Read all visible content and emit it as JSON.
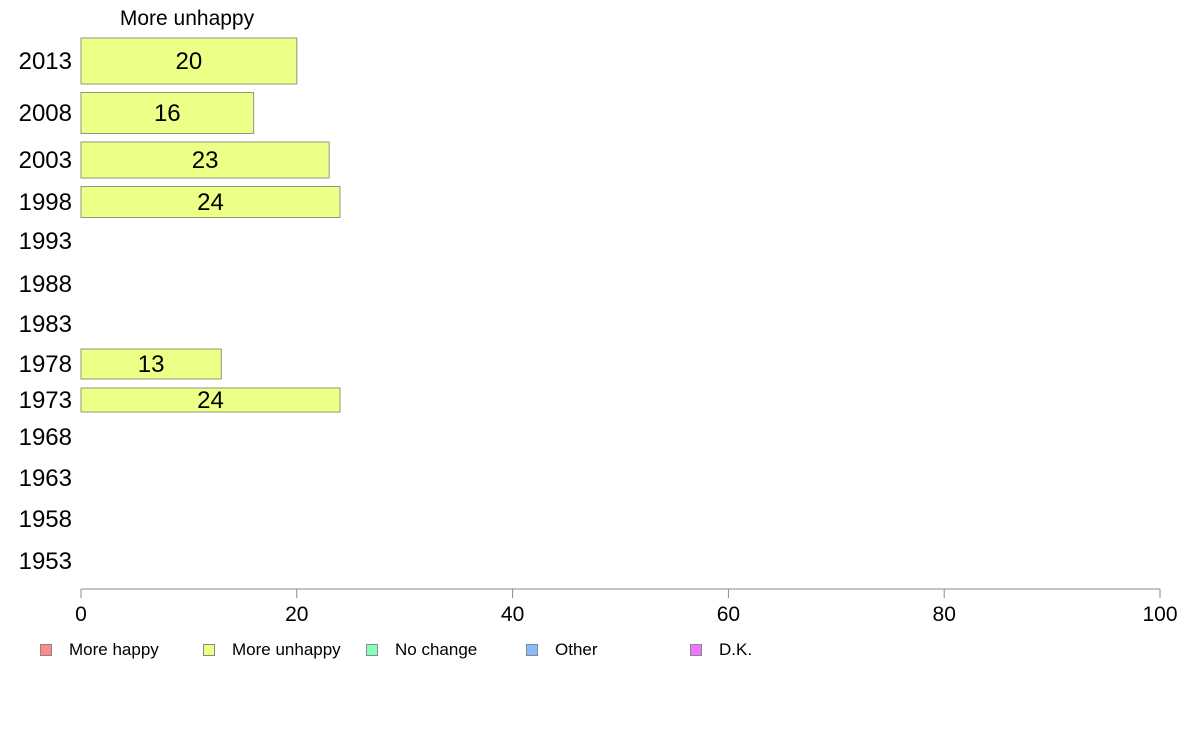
{
  "chart_data": {
    "type": "bar",
    "orientation": "horizontal",
    "title": "More unhappy",
    "categories": [
      "2013",
      "2008",
      "2003",
      "1998",
      "1993",
      "1988",
      "1983",
      "1978",
      "1973",
      "1968",
      "1963",
      "1958",
      "1953"
    ],
    "series": [
      {
        "name": "More unhappy",
        "color": "#eeff88",
        "values": [
          20,
          16,
          23,
          24,
          null,
          null,
          null,
          13,
          24,
          null,
          null,
          null,
          null
        ],
        "labels": [
          "20",
          "16",
          "23",
          "24",
          "",
          "",
          "",
          "13",
          "24",
          "",
          "",
          "",
          ""
        ]
      }
    ],
    "xlim": [
      0,
      100
    ],
    "xticks": [
      "0",
      "20",
      "40",
      "60",
      "80",
      "100"
    ],
    "grid": false,
    "legend_position": "bottom",
    "legend": [
      {
        "label": "More happy",
        "color": "#ff8888"
      },
      {
        "label": "More unhappy",
        "color": "#eeff88"
      },
      {
        "label": "No change",
        "color": "#88ffbb"
      },
      {
        "label": "Other",
        "color": "#88bbff"
      },
      {
        "label": "D.K.",
        "color": "#ee77ff"
      }
    ]
  }
}
